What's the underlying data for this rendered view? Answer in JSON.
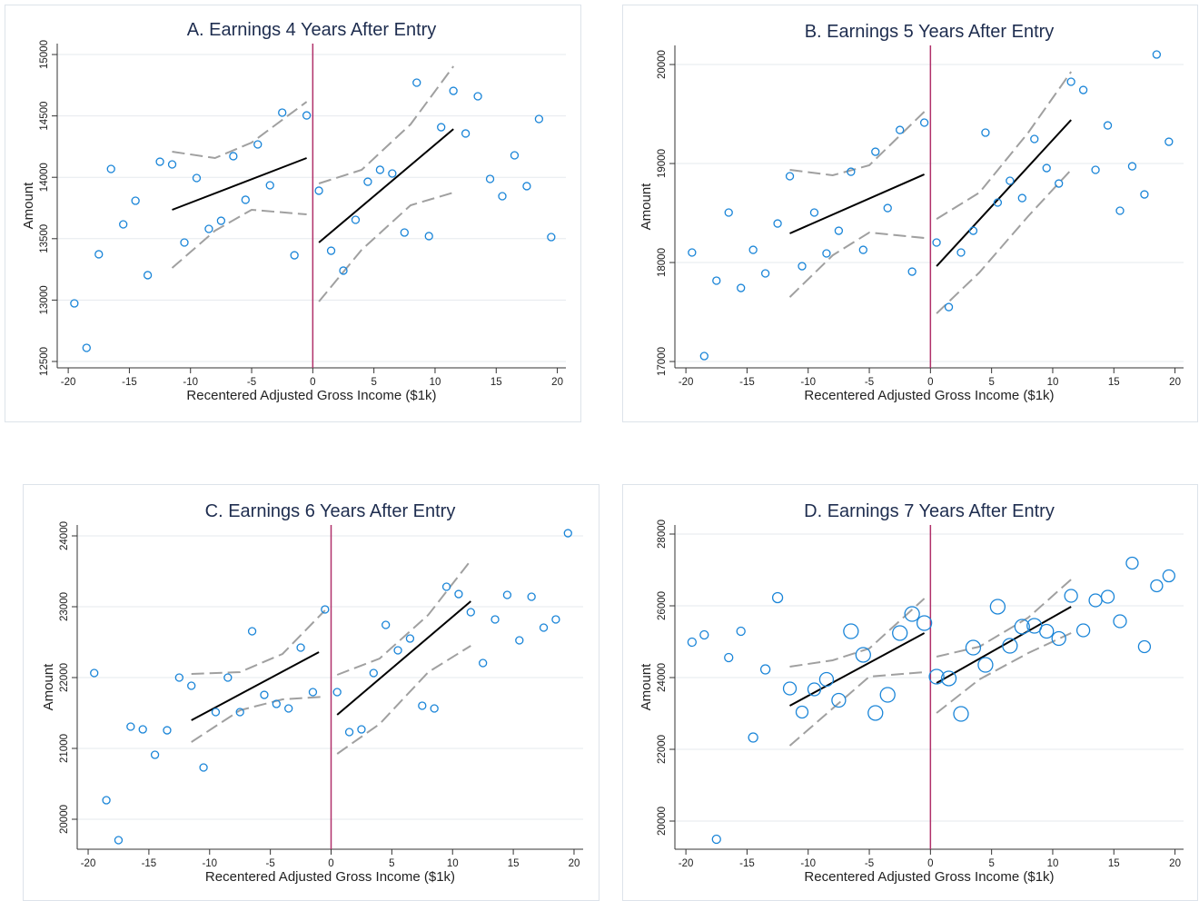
{
  "chart_data": [
    {
      "type": "scatter",
      "title": "A. Earnings 4 Years After Entry",
      "xlabel": "Recentered Adjusted Gross Income ($1k)",
      "ylabel": "Amount",
      "xlim": [
        -20.9,
        20.7
      ],
      "ylim": [
        12448,
        15089
      ],
      "xticks": [
        -20,
        -15,
        -10,
        -5,
        0,
        5,
        10,
        15,
        20
      ],
      "yticks": [
        12500,
        13000,
        13500,
        14000,
        14500,
        15000
      ],
      "grid": true,
      "cutoff": 0,
      "cutoff_color": "#b0306a",
      "points": {
        "color": "#1a85d8",
        "x": [
          -19.5,
          -18.5,
          -17.5,
          -16.5,
          -15.5,
          -14.5,
          -13.5,
          -12.5,
          -11.5,
          -10.5,
          -9.5,
          -8.5,
          -7.5,
          -6.5,
          -5.5,
          -4.5,
          -3.5,
          -2.5,
          -1.5,
          -0.5,
          0.5,
          1.5,
          2.5,
          3.5,
          4.5,
          5.5,
          6.5,
          7.5,
          8.5,
          9.5,
          10.5,
          11.5,
          12.5,
          13.5,
          14.5,
          15.5,
          16.5,
          17.5,
          18.5,
          19.5
        ],
        "y": [
          12973,
          12611,
          13373,
          14068,
          13617,
          13809,
          13203,
          14127,
          14105,
          13469,
          13994,
          13580,
          13646,
          14172,
          13817,
          14268,
          13935,
          14527,
          13365,
          14504,
          13891,
          13402,
          13240,
          13654,
          13964,
          14061,
          14031,
          13550,
          14771,
          13521,
          14408,
          14704,
          14357,
          14660,
          13987,
          13846,
          14179,
          13928,
          14475,
          13513
        ]
      },
      "fit_color": "#000000",
      "fits": [
        {
          "x": [
            -11.5,
            -0.5
          ],
          "y": [
            13735,
            14157
          ]
        },
        {
          "x": [
            0.5,
            11.5
          ],
          "y": [
            13469,
            14393
          ]
        }
      ],
      "band_color": "#a0a0a0",
      "bands": [
        {
          "x": [
            -11.5,
            -8,
            -5,
            -0.5
          ],
          "upper": [
            14209,
            14157,
            14283,
            14615
          ],
          "lower": [
            13262,
            13565,
            13735,
            13698
          ]
        },
        {
          "x": [
            0.5,
            4,
            8,
            11.5
          ],
          "upper": [
            13950,
            14061,
            14431,
            14904
          ],
          "lower": [
            12988,
            13410,
            13772,
            13876
          ]
        }
      ]
    },
    {
      "type": "scatter",
      "title": "B. Earnings 5 Years After Entry",
      "xlabel": "Recentered Adjusted Gross Income ($1k)",
      "ylabel": "Amount",
      "xlim": [
        -20.9,
        20.7
      ],
      "ylim": [
        16936,
        20193
      ],
      "xticks": [
        -20,
        -15,
        -10,
        -5,
        0,
        5,
        10,
        15,
        20
      ],
      "yticks": [
        17000,
        18000,
        19000,
        20000
      ],
      "grid": true,
      "cutoff": 0,
      "cutoff_color": "#b0306a",
      "points": {
        "color": "#1a85d8",
        "x": [
          -19.5,
          -18.5,
          -17.5,
          -16.5,
          -15.5,
          -14.5,
          -13.5,
          -12.5,
          -11.5,
          -10.5,
          -9.5,
          -8.5,
          -7.5,
          -6.5,
          -5.5,
          -4.5,
          -3.5,
          -2.5,
          -1.5,
          -0.5,
          0.5,
          1.5,
          2.5,
          3.5,
          4.5,
          5.5,
          6.5,
          7.5,
          8.5,
          9.5,
          10.5,
          11.5,
          12.5,
          13.5,
          14.5,
          15.5,
          16.5,
          17.5,
          18.5,
          19.5
        ],
        "y": [
          18101,
          17055,
          17817,
          18505,
          17743,
          18128,
          17890,
          18394,
          18872,
          17963,
          18505,
          18092,
          18321,
          18917,
          18128,
          19119,
          18550,
          19339,
          17908,
          19413,
          18202,
          17550,
          18101,
          18321,
          19312,
          18606,
          18826,
          18651,
          19248,
          18954,
          18798,
          19826,
          19743,
          18936,
          19385,
          18523,
          18972,
          18688,
          20101,
          19220
        ]
      },
      "fit_color": "#000000",
      "fits": [
        {
          "x": [
            -11.5,
            -0.5
          ],
          "y": [
            18294,
            18890
          ]
        },
        {
          "x": [
            0.5,
            11.5
          ],
          "y": [
            17963,
            19440
          ]
        }
      ],
      "band_color": "#a0a0a0",
      "bands": [
        {
          "x": [
            -11.5,
            -8,
            -5,
            -0.5
          ],
          "upper": [
            18936,
            18881,
            18982,
            19523
          ],
          "lower": [
            17651,
            18073,
            18303,
            18248
          ]
        },
        {
          "x": [
            0.5,
            4,
            8,
            11.5
          ],
          "upper": [
            18440,
            18706,
            19312,
            19927
          ],
          "lower": [
            17486,
            17899,
            18468,
            18936
          ]
        }
      ]
    },
    {
      "type": "scatter",
      "title": "C. Earnings 6 Years After Entry",
      "xlabel": "Recentered Adjusted Gross Income ($1k)",
      "ylabel": "Amount",
      "xlim": [
        -20.9,
        20.75
      ],
      "ylim": [
        19577,
        24154
      ],
      "xticks": [
        -20,
        -15,
        -10,
        -5,
        0,
        5,
        10,
        15,
        20
      ],
      "yticks": [
        20000,
        21000,
        22000,
        23000,
        24000
      ],
      "grid": true,
      "cutoff": 0,
      "cutoff_color": "#b0306a",
      "points": {
        "color": "#1a85d8",
        "x": [
          -19.5,
          -18.5,
          -17.5,
          -16.5,
          -15.5,
          -14.5,
          -13.5,
          -12.5,
          -11.5,
          -10.5,
          -9.5,
          -8.5,
          -7.5,
          -6.5,
          -5.5,
          -4.5,
          -3.5,
          -2.5,
          -1.5,
          -0.5,
          0.5,
          1.5,
          2.5,
          3.5,
          4.5,
          5.5,
          6.5,
          7.5,
          8.5,
          9.5,
          10.5,
          11.5,
          12.5,
          13.5,
          14.5,
          15.5,
          16.5,
          17.5,
          18.5,
          19.5
        ],
        "y": [
          22064,
          20269,
          19705,
          21308,
          21269,
          20910,
          21256,
          22000,
          21885,
          20731,
          21513,
          22000,
          21513,
          22654,
          21756,
          21628,
          21564,
          22423,
          21795,
          22962,
          21795,
          21231,
          21269,
          22064,
          22744,
          22385,
          22551,
          21603,
          21564,
          23282,
          23179,
          22923,
          22205,
          22821,
          23167,
          22526,
          23141,
          22705,
          22821,
          24038
        ]
      },
      "fit_color": "#000000",
      "fits": [
        {
          "x": [
            -11.5,
            -1
          ],
          "y": [
            21397,
            22359
          ]
        },
        {
          "x": [
            0.5,
            11.5
          ],
          "y": [
            21474,
            23077
          ]
        }
      ],
      "band_color": "#a0a0a0",
      "bands": [
        {
          "x": [
            -11.5,
            -7.5,
            -4,
            -0.5
          ],
          "upper": [
            22051,
            22077,
            22333,
            22949
          ],
          "lower": [
            21090,
            21538,
            21692,
            21731
          ]
        },
        {
          "x": [
            0.5,
            4,
            8,
            11.5
          ],
          "upper": [
            22038,
            22269,
            22885,
            23654
          ],
          "lower": [
            20923,
            21346,
            22077,
            22449
          ]
        }
      ]
    },
    {
      "type": "scatter",
      "title": "D. Earnings 7 Years After Entry",
      "xlabel": "Recentered Adjusted Gross Income ($1k)",
      "ylabel": "Amount",
      "xlim": [
        -20.9,
        20.7
      ],
      "ylim": [
        19215,
        28253
      ],
      "xticks": [
        -20,
        -15,
        -10,
        -5,
        0,
        5,
        10,
        15,
        20
      ],
      "yticks": [
        20000,
        22000,
        24000,
        26000,
        28000
      ],
      "grid": true,
      "cutoff": 0,
      "cutoff_color": "#b0306a",
      "points": {
        "color": "#1a85d8",
        "x": [
          -19.5,
          -18.5,
          -17.5,
          -16.5,
          -15.5,
          -14.5,
          -13.5,
          -12.5,
          -11.5,
          -10.5,
          -9.5,
          -8.5,
          -7.5,
          -6.5,
          -5.5,
          -4.5,
          -3.5,
          -2.5,
          -1.5,
          -0.5,
          0.5,
          1.5,
          2.5,
          3.5,
          4.5,
          5.5,
          6.5,
          7.5,
          8.5,
          9.5,
          10.5,
          11.5,
          12.5,
          13.5,
          14.5,
          15.5,
          16.5,
          17.5,
          18.5,
          19.5
        ],
        "y": [
          24987,
          25190,
          19494,
          24557,
          25291,
          22329,
          24228,
          26228,
          23696,
          23038,
          23671,
          23949,
          23367,
          25291,
          24633,
          23013,
          23519,
          25241,
          25772,
          25519,
          24025,
          23975,
          22987,
          24835,
          24354,
          25975,
          24886,
          25418,
          25443,
          25291,
          25089,
          26278,
          25316,
          26152,
          26253,
          25570,
          27190,
          24861,
          26557,
          26835
        ],
        "sizes": [
          4.5,
          4.5,
          4.5,
          4.5,
          4.5,
          5,
          5,
          5.5,
          7,
          6.5,
          7,
          7.5,
          7.5,
          8,
          8,
          8,
          8,
          8,
          8,
          8,
          8,
          8,
          8,
          8,
          8,
          8,
          8,
          8,
          8,
          7.5,
          7.5,
          7,
          7,
          7,
          7,
          7,
          6.5,
          6.5,
          6.5,
          6.5
        ]
      },
      "fit_color": "#000000",
      "fits": [
        {
          "x": [
            -11.5,
            -0.5
          ],
          "y": [
            23215,
            25241
          ]
        },
        {
          "x": [
            0.5,
            11.5
          ],
          "y": [
            23848,
            25975
          ]
        }
      ],
      "band_color": "#a0a0a0",
      "bands": [
        {
          "x": [
            -11.5,
            -8,
            -5,
            -0.5
          ],
          "upper": [
            24304,
            24481,
            24810,
            26203
          ],
          "lower": [
            22101,
            23139,
            24025,
            24152
          ]
        },
        {
          "x": [
            0.5,
            4,
            8,
            11.5
          ],
          "upper": [
            24582,
            24861,
            25671,
            26734
          ],
          "lower": [
            23013,
            23949,
            24684,
            25241
          ]
        }
      ]
    }
  ]
}
